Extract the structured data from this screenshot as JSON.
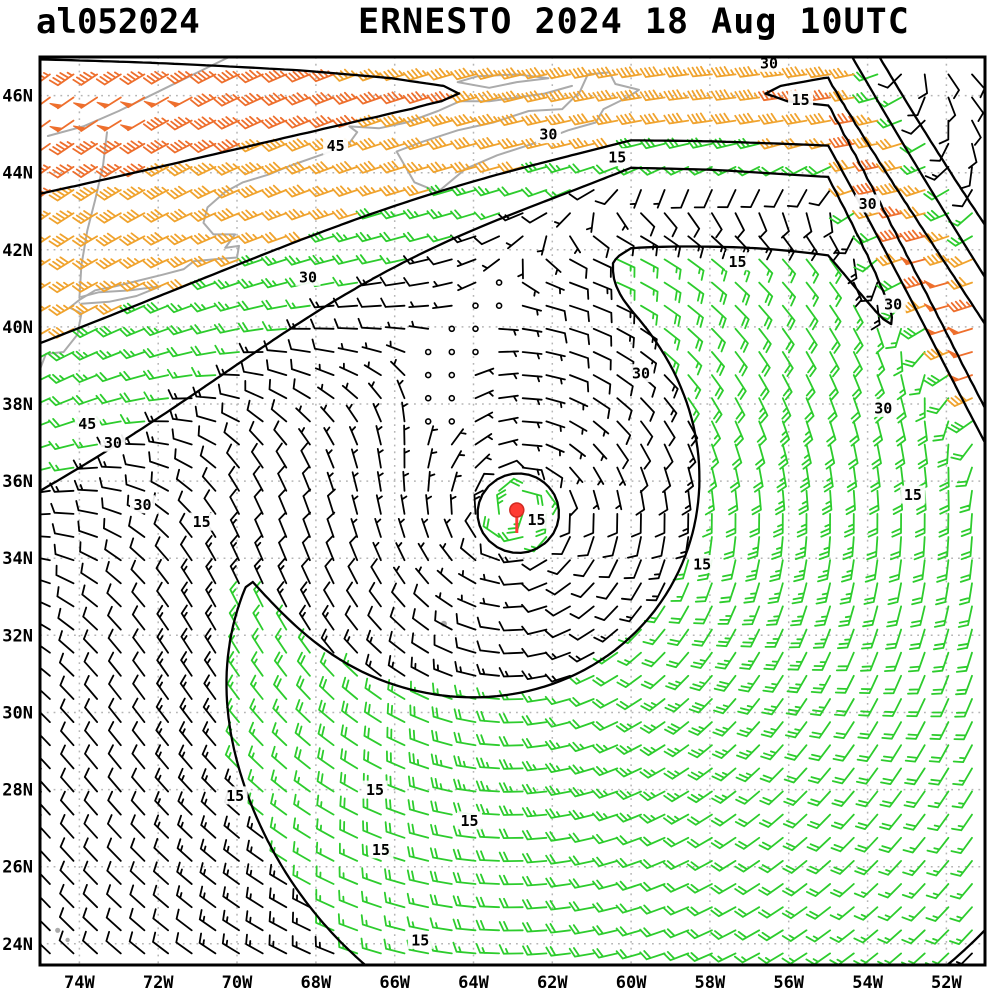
{
  "header": {
    "storm_id": "al052024",
    "title": "ERNESTO 2024 18 Aug 10UTC"
  },
  "axes": {
    "lat_labels": [
      "46N",
      "44N",
      "42N",
      "40N",
      "38N",
      "36N",
      "34N",
      "32N",
      "30N",
      "28N",
      "26N",
      "24N"
    ],
    "lat_values": [
      46,
      44,
      42,
      40,
      38,
      36,
      34,
      32,
      30,
      28,
      26,
      24
    ],
    "lon_labels": [
      "74W",
      "72W",
      "70W",
      "68W",
      "66W",
      "64W",
      "62W",
      "60W",
      "58W",
      "56W",
      "54W",
      "52W"
    ],
    "lon_values": [
      -74,
      -72,
      -70,
      -68,
      -66,
      -64,
      -62,
      -60,
      -58,
      -56,
      -54,
      -52
    ]
  },
  "chart_data": {
    "type": "wind-barb-map",
    "title": "ERNESTO 2024 18 Aug 10UTC",
    "storm_id": "al052024",
    "projection": {
      "lon_min": -75.0,
      "lon_max": -51.02,
      "lat_min": 23.45,
      "lat_max": 47.0
    },
    "grid_spacing_deg": 2,
    "barb_grid_spacing_deg": 0.6,
    "contour_levels_kt": [
      15,
      30,
      45
    ],
    "storm_center": {
      "lon": -62.9,
      "lat": 35.25,
      "color": "#ff3b33"
    },
    "wind_speed_colors": [
      {
        "min": 0,
        "max": 15,
        "color": "#000000"
      },
      {
        "min": 15,
        "max": 30,
        "color": "#2dcc2d"
      },
      {
        "min": 30,
        "max": 45,
        "color": "#f0a32e"
      },
      {
        "min": 45,
        "max": 999,
        "color": "#ee6f2d"
      }
    ],
    "wind_field_model": {
      "description": "Synthetic approximation (kt) of the plotted surface wind analysis: cyclonic vortex around Ernesto plus mid-latitude westerly jet to the north, SW flow in the west",
      "center_lon": -62.9,
      "center_lat": 35.2,
      "vmax": 20,
      "rmax": 7,
      "inner_exp": 1.3,
      "outer_exp": 0.75,
      "asym_amp": 0.4,
      "asym_dir_deg": -40,
      "core_vmax": 25,
      "core_radius": 1.3,
      "jet": {
        "amp": 55,
        "axis_lat": 46,
        "bend_lon": -55,
        "plunge_slope": 1.8,
        "width_north": 3.5,
        "width_south": 2.2,
        "west_widen": 7.8,
        "widen_lon": -60,
        "widen_span": 15,
        "sw_angle_deg": 38,
        "turn_lon": -58,
        "turn_span": 17
      }
    },
    "contour_labels": [
      {
        "lon": -67.5,
        "lat": 44.7,
        "text": "45"
      },
      {
        "lon": -62.1,
        "lat": 45.0,
        "text": "30"
      },
      {
        "lon": -60.35,
        "lat": 44.4,
        "text": "15"
      },
      {
        "lon": -56.5,
        "lat": 46.85,
        "text": "30"
      },
      {
        "lon": -55.7,
        "lat": 45.9,
        "text": "15"
      },
      {
        "lon": -54.0,
        "lat": 43.2,
        "text": "30"
      },
      {
        "lon": -53.35,
        "lat": 40.6,
        "text": "30"
      },
      {
        "lon": -57.3,
        "lat": 41.7,
        "text": "15"
      },
      {
        "lon": -68.2,
        "lat": 41.3,
        "text": "30"
      },
      {
        "lon": -59.75,
        "lat": 38.8,
        "text": "30"
      },
      {
        "lon": -53.6,
        "lat": 37.9,
        "text": "30"
      },
      {
        "lon": -73.8,
        "lat": 37.5,
        "text": "45"
      },
      {
        "lon": -73.15,
        "lat": 37.0,
        "text": "30"
      },
      {
        "lon": -72.4,
        "lat": 35.4,
        "text": "30"
      },
      {
        "lon": -70.9,
        "lat": 34.95,
        "text": "15"
      },
      {
        "lon": -62.4,
        "lat": 35.0,
        "text": "15"
      },
      {
        "lon": -58.2,
        "lat": 33.85,
        "text": "15"
      },
      {
        "lon": -52.85,
        "lat": 35.65,
        "text": "15"
      },
      {
        "lon": -70.05,
        "lat": 27.85,
        "text": "15"
      },
      {
        "lon": -66.5,
        "lat": 28.0,
        "text": "15"
      },
      {
        "lon": -64.1,
        "lat": 27.2,
        "text": "15"
      },
      {
        "lon": -66.35,
        "lat": 26.45,
        "text": "15"
      },
      {
        "lon": -65.35,
        "lat": 24.1,
        "text": "15"
      }
    ],
    "coast_color": "#ababab",
    "coastlines": [
      [
        [
          -75.0,
          38.9
        ],
        [
          -74.85,
          39.3
        ],
        [
          -74.4,
          39.35
        ],
        [
          -74.05,
          39.8
        ],
        [
          -73.95,
          40.35
        ],
        [
          -74.25,
          40.5
        ],
        [
          -74.0,
          40.7
        ],
        [
          -73.6,
          40.95
        ],
        [
          -73.1,
          41.05
        ],
        [
          -72.5,
          41.2
        ],
        [
          -71.9,
          41.35
        ],
        [
          -71.35,
          41.5
        ],
        [
          -71.1,
          41.7
        ],
        [
          -70.6,
          41.75
        ],
        [
          -70.0,
          41.8
        ],
        [
          -69.95,
          42.1
        ],
        [
          -70.3,
          42.05
        ],
        [
          -70.05,
          42.4
        ],
        [
          -70.6,
          42.4
        ],
        [
          -70.85,
          42.7
        ],
        [
          -70.75,
          43.1
        ],
        [
          -70.3,
          43.5
        ],
        [
          -69.85,
          43.75
        ],
        [
          -69.2,
          43.95
        ],
        [
          -68.6,
          44.2
        ],
        [
          -67.9,
          44.45
        ],
        [
          -67.2,
          44.7
        ],
        [
          -66.95,
          45.05
        ],
        [
          -67.15,
          45.2
        ],
        [
          -66.4,
          45.15
        ],
        [
          -65.7,
          45.3
        ],
        [
          -64.9,
          45.6
        ],
        [
          -64.35,
          45.85
        ],
        [
          -63.6,
          45.85
        ],
        [
          -62.9,
          45.95
        ],
        [
          -62.2,
          46.05
        ],
        [
          -61.5,
          46.25
        ]
      ],
      [
        [
          -65.95,
          44.55
        ],
        [
          -65.5,
          43.75
        ],
        [
          -64.9,
          43.5
        ],
        [
          -64.2,
          44.1
        ],
        [
          -63.4,
          44.45
        ],
        [
          -62.5,
          44.75
        ],
        [
          -61.6,
          45.1
        ],
        [
          -60.9,
          45.3
        ],
        [
          -60.7,
          45.65
        ],
        [
          -60.1,
          45.95
        ],
        [
          -59.8,
          46.15
        ],
        [
          -60.4,
          46.3
        ],
        [
          -60.55,
          46.6
        ],
        [
          -61.1,
          46.55
        ],
        [
          -61.3,
          46.1
        ],
        [
          -61.75,
          45.65
        ],
        [
          -62.6,
          45.6
        ],
        [
          -63.5,
          45.3
        ],
        [
          -64.4,
          45.1
        ],
        [
          -65.3,
          44.8
        ],
        [
          -65.95,
          44.55
        ]
      ],
      [
        [
          -73.95,
          40.6
        ],
        [
          -73.25,
          40.65
        ],
        [
          -72.55,
          40.8
        ],
        [
          -71.95,
          41.05
        ],
        [
          -72.7,
          40.95
        ],
        [
          -73.5,
          40.9
        ],
        [
          -73.95,
          40.78
        ]
      ],
      [
        [
          -64.4,
          46.35
        ],
        [
          -63.6,
          46.2
        ],
        [
          -62.9,
          46.35
        ],
        [
          -62.1,
          46.45
        ],
        [
          -62.9,
          46.55
        ],
        [
          -63.9,
          46.5
        ],
        [
          -64.4,
          46.35
        ]
      ],
      [
        [
          -74.0,
          40.75
        ],
        [
          -73.95,
          41.6
        ],
        [
          -73.8,
          42.5
        ],
        [
          -73.6,
          43.3
        ],
        [
          -73.4,
          44.2
        ],
        [
          -73.3,
          45.05
        ]
      ],
      [
        [
          -74.8,
          44.95
        ],
        [
          -73.9,
          45.2
        ],
        [
          -73.0,
          45.6
        ],
        [
          -72.0,
          46.1
        ],
        [
          -71.0,
          46.6
        ],
        [
          -70.2,
          47.0
        ]
      ]
    ],
    "island_marks": [
      [
        -64.75,
        32.3,
        3
      ],
      [
        -74.55,
        24.35,
        2.6
      ],
      [
        -74.3,
        24.1,
        2.2
      ]
    ]
  }
}
